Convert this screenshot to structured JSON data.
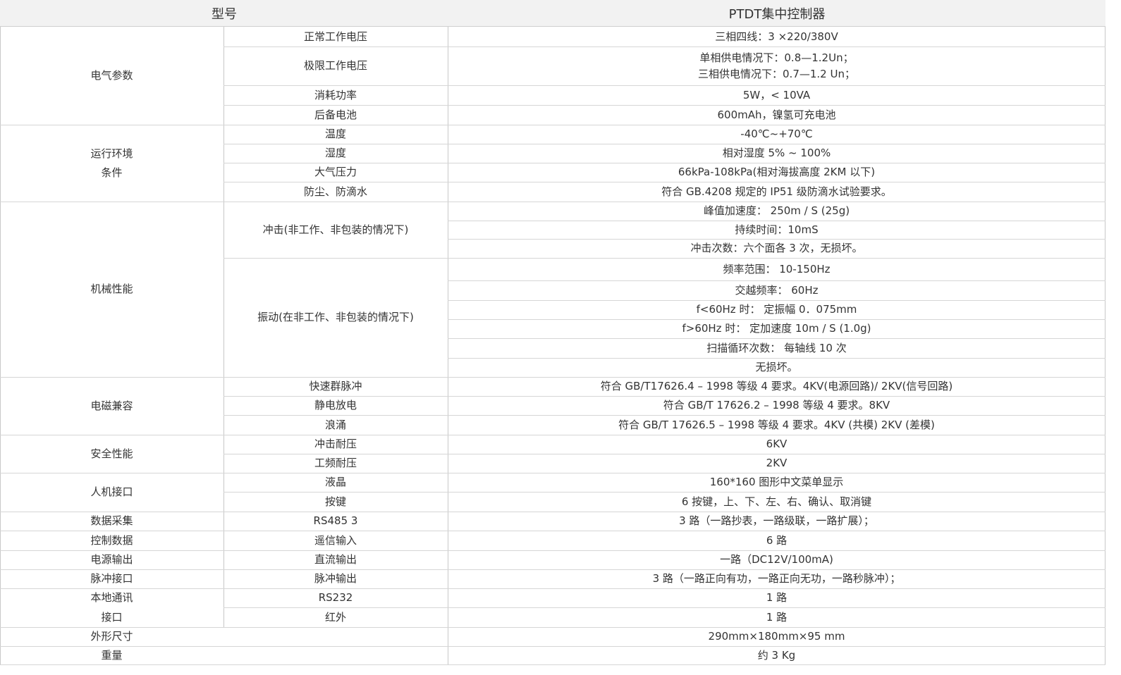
{
  "header": {
    "model_label": "型号",
    "product_name": "PTDT集中控制器"
  },
  "groups": {
    "g1": "电气参数",
    "g2": [
      "运行环境",
      "条件"
    ],
    "g3": "机械性能",
    "g4": "电磁兼容",
    "g5": "安全性能",
    "g6": "人机接口",
    "g7": "数据采集",
    "g8": "控制数据",
    "g9": "电源输出",
    "g10": "脉冲接口",
    "g11": "本地通讯",
    "g12": "接口",
    "g13": "外形尺寸",
    "g14": "重量"
  },
  "items": {
    "i1": "正常工作电压",
    "i2": "极限工作电压",
    "i3": "消耗功率",
    "i4": "后备电池",
    "i5": "温度",
    "i6": "湿度",
    "i7": "大气压力",
    "i8": "防尘、防滴水",
    "i9": "冲击(非工作、非包装的情况下)",
    "i10": "振动(在非工作、非包装的情况下)",
    "i11": "快速群脉冲",
    "i12": "静电放电",
    "i13": "浪涌",
    "i14": "冲击耐压",
    "i15": "工频耐压",
    "i16": "液晶",
    "i17": "按键",
    "i18": "RS485 3",
    "i19": "遥信输入",
    "i20": "直流输出",
    "i21": "脉冲输出",
    "i22": "RS232",
    "i23": "红外"
  },
  "values": {
    "v1": "三相四线：3 ×220/380V",
    "v2": [
      "单相供电情况下：0.8—1.2Un；",
      "三相供电情况下：0.7—1.2 Un；"
    ],
    "v3": "5W，< 10VA",
    "v4": "600mAh，镍氢可充电池",
    "v5": "-40℃~+70℃",
    "v6": "相对湿度 5% ~ 100%",
    "v7": "66kPa-108kPa(相对海拔高度 2KM 以下)",
    "v8": "符合 GB.4208 规定的 IP51 级防滴水试验要求。",
    "v9": "峰值加速度： 250m / S (25g)",
    "v10": "持续时间：10mS",
    "v11": "冲击次数：六个面各 3 次，无损坏。",
    "v12": "频率范围： 10-150Hz",
    "v13": "交越频率： 60Hz",
    "v14": "f<60Hz 时： 定振幅 0．075mm",
    "v15": "f>60Hz 时： 定加速度 10m / S (1.0g)",
    "v16": "扫描循环次数： 每轴线 10 次",
    "v17": "无损坏。",
    "v18": "符合 GB/T17626.4 – 1998 等级 4 要求。4KV(电源回路)/ 2KV(信号回路)",
    "v19": "符合 GB/T 17626.2 – 1998 等级 4 要求。8KV",
    "v20": "符合 GB/T 17626.5 – 1998 等级 4 要求。4KV (共模) 2KV (差模)",
    "v21": "6KV",
    "v22": "2KV",
    "v23": "160*160 图形中文菜单显示",
    "v24": "6 按键，上、下、左、右、确认、取消键",
    "v25": "3 路（一路抄表，一路级联，一路扩展）；",
    "v26": "6 路",
    "v27": "一路（DC12V/100mA)",
    "v28": "3 路（一路正向有功，一路正向无功，一路秒脉冲）；",
    "v29": "1 路",
    "v30": "1 路",
    "v31": "290mm×180mm×95 mm",
    "v32": "约 3 Kg"
  }
}
